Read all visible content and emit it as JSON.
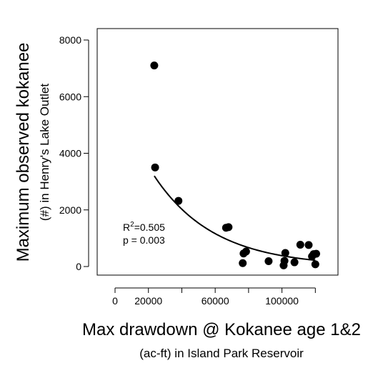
{
  "chart_data": {
    "type": "scatter",
    "title": "",
    "xlabel": "Max drawdown @ Kokanee age 1&2",
    "xlabel_sub": "(ac-ft) in Island Park Reservoir",
    "ylabel": "Maximum observed kokanee",
    "ylabel_sub": "(#) in Henry's Lake Outlet",
    "xlim": [
      0,
      125000
    ],
    "ylim": [
      0,
      8000
    ],
    "x_ticks": [
      0,
      20000,
      60000,
      100000
    ],
    "x_tick_labels": [
      "0",
      "20000",
      "60000",
      "100000"
    ],
    "x_minor_ticks": [
      40000,
      80000,
      120000
    ],
    "y_ticks": [
      0,
      2000,
      4000,
      6000,
      8000
    ],
    "y_tick_labels": [
      "0",
      "2000",
      "4000",
      "6000",
      "8000"
    ],
    "grid": false,
    "points": [
      {
        "x": 23500,
        "y": 7100
      },
      {
        "x": 24000,
        "y": 3500
      },
      {
        "x": 38000,
        "y": 2320
      },
      {
        "x": 66500,
        "y": 1370
      },
      {
        "x": 68000,
        "y": 1390
      },
      {
        "x": 76500,
        "y": 120
      },
      {
        "x": 77000,
        "y": 460
      },
      {
        "x": 78500,
        "y": 530
      },
      {
        "x": 92000,
        "y": 190
      },
      {
        "x": 101000,
        "y": 40
      },
      {
        "x": 101500,
        "y": 200
      },
      {
        "x": 102000,
        "y": 480
      },
      {
        "x": 107500,
        "y": 150
      },
      {
        "x": 111000,
        "y": 770
      },
      {
        "x": 116000,
        "y": 760
      },
      {
        "x": 118000,
        "y": 360
      },
      {
        "x": 119000,
        "y": 440
      },
      {
        "x": 120000,
        "y": 80
      },
      {
        "x": 120500,
        "y": 450
      }
    ],
    "fit_curve": {
      "type": "exponential",
      "x_range": [
        23500,
        120000
      ],
      "y_start": 3200,
      "y_end": 220
    },
    "annotations": {
      "r2_prefix": "R",
      "r2_superscript": "2",
      "r2_value": "=0.505",
      "p_text": "p = 0.003"
    }
  }
}
